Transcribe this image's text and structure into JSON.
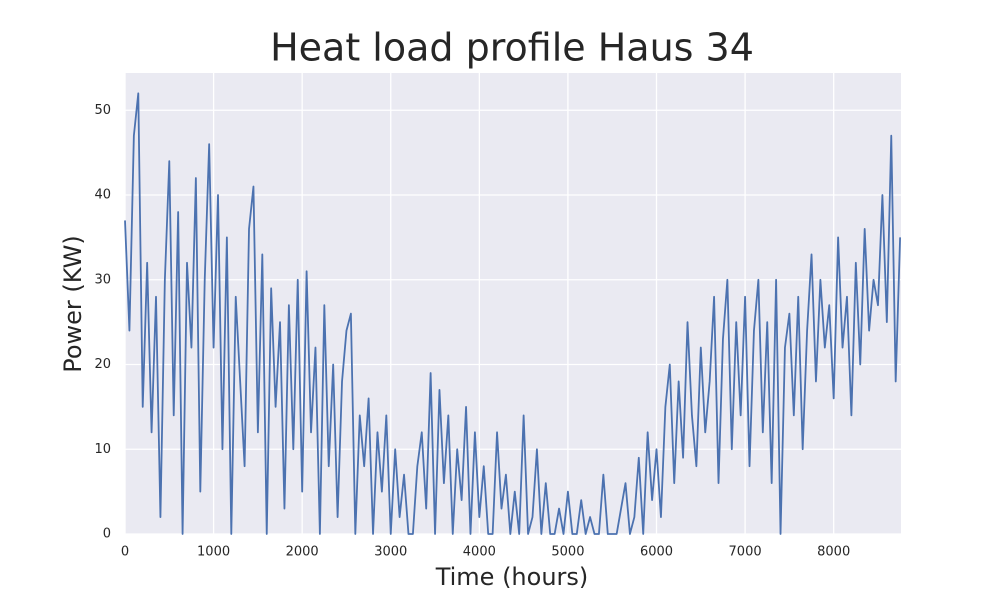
{
  "chart_data": {
    "type": "line",
    "title": "Heat load profile Haus 34",
    "x_label": "Time (hours)",
    "y_label": "Power (KW)",
    "x": [
      0,
      50,
      100,
      150,
      200,
      250,
      300,
      350,
      400,
      450,
      500,
      550,
      600,
      650,
      700,
      750,
      800,
      850,
      900,
      950,
      1000,
      1050,
      1100,
      1150,
      1200,
      1250,
      1300,
      1350,
      1400,
      1450,
      1500,
      1550,
      1600,
      1650,
      1700,
      1750,
      1800,
      1850,
      1900,
      1950,
      2000,
      2050,
      2100,
      2150,
      2200,
      2250,
      2300,
      2350,
      2400,
      2450,
      2500,
      2550,
      2600,
      2650,
      2700,
      2750,
      2800,
      2850,
      2900,
      2950,
      3000,
      3050,
      3100,
      3150,
      3200,
      3250,
      3300,
      3350,
      3400,
      3450,
      3500,
      3550,
      3600,
      3650,
      3700,
      3750,
      3800,
      3850,
      3900,
      3950,
      4000,
      4050,
      4100,
      4150,
      4200,
      4250,
      4300,
      4350,
      4400,
      4450,
      4500,
      4550,
      4600,
      4650,
      4700,
      4750,
      4800,
      4850,
      4900,
      4950,
      5000,
      5050,
      5100,
      5150,
      5200,
      5250,
      5300,
      5350,
      5400,
      5450,
      5500,
      5550,
      5600,
      5650,
      5700,
      5750,
      5800,
      5850,
      5900,
      5950,
      6000,
      6050,
      6100,
      6150,
      6200,
      6250,
      6300,
      6350,
      6400,
      6450,
      6500,
      6550,
      6600,
      6650,
      6700,
      6750,
      6800,
      6850,
      6900,
      6950,
      7000,
      7050,
      7100,
      7150,
      7200,
      7250,
      7300,
      7350,
      7400,
      7450,
      7500,
      7550,
      7600,
      7650,
      7700,
      7750,
      7800,
      7850,
      7900,
      7950,
      8000,
      8050,
      8100,
      8150,
      8200,
      8250,
      8300,
      8350,
      8400,
      8450,
      8500,
      8550,
      8600,
      8650,
      8700,
      8750
    ],
    "series": [
      {
        "name": "Power",
        "color": "#4c72b0",
        "values": [
          37,
          24,
          47,
          52,
          15,
          32,
          12,
          28,
          2,
          30,
          44,
          14,
          38,
          0,
          32,
          22,
          42,
          5,
          30,
          46,
          22,
          40,
          10,
          35,
          0,
          28,
          18,
          8,
          36,
          41,
          12,
          33,
          0,
          29,
          15,
          25,
          3,
          27,
          10,
          30,
          5,
          31,
          12,
          22,
          0,
          27,
          8,
          20,
          2,
          18,
          24,
          26,
          0,
          14,
          8,
          16,
          0,
          12,
          5,
          14,
          0,
          10,
          2,
          7,
          0,
          0,
          8,
          12,
          3,
          19,
          0,
          17,
          6,
          14,
          0,
          10,
          4,
          15,
          0,
          12,
          2,
          8,
          0,
          0,
          12,
          3,
          7,
          0,
          5,
          0,
          14,
          0,
          2,
          10,
          0,
          6,
          0,
          0,
          3,
          0,
          5,
          0,
          0,
          4,
          0,
          2,
          0,
          0,
          7,
          0,
          0,
          0,
          3,
          6,
          0,
          2,
          9,
          0,
          12,
          4,
          10,
          2,
          15,
          20,
          6,
          18,
          9,
          25,
          14,
          8,
          22,
          12,
          18,
          28,
          6,
          23,
          30,
          10,
          25,
          14,
          28,
          8,
          24,
          30,
          12,
          25,
          6,
          30,
          0,
          22,
          26,
          14,
          28,
          10,
          24,
          33,
          18,
          30,
          22,
          27,
          16,
          35,
          22,
          28,
          14,
          32,
          20,
          36,
          24,
          30,
          27,
          40,
          25,
          47,
          18,
          35
        ]
      }
    ],
    "xlim": [
      0,
      8760
    ],
    "ylim": [
      0,
      54.4
    ],
    "xticks": [
      0,
      1000,
      2000,
      3000,
      4000,
      5000,
      6000,
      7000,
      8000
    ],
    "yticks": [
      0,
      10,
      20,
      30,
      40,
      50
    ],
    "grid": true
  }
}
